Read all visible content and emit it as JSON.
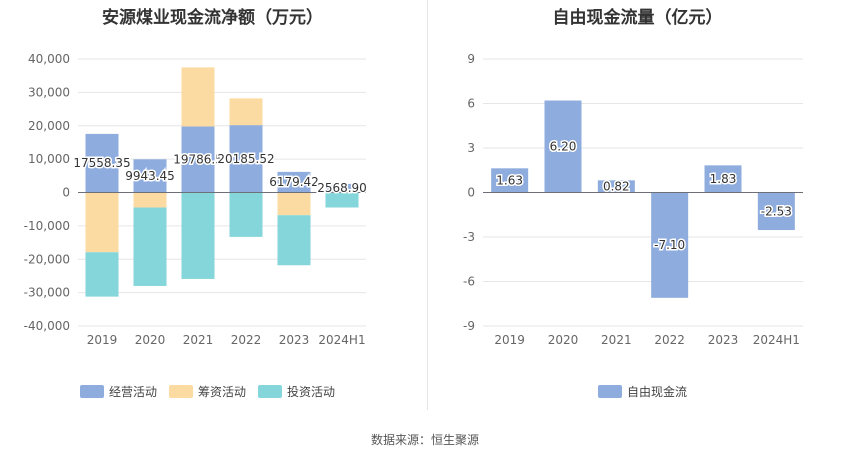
{
  "source": "数据来源：恒生聚源",
  "chart_data": [
    {
      "type": "bar",
      "stacked": true,
      "title": "安源煤业现金流净额（万元）",
      "categories": [
        "2019",
        "2020",
        "2021",
        "2022",
        "2023",
        "2024H1"
      ],
      "ylim": [
        -40000,
        40000
      ],
      "yticks": [
        40000,
        30000,
        20000,
        10000,
        0,
        -10000,
        -20000,
        -30000,
        -40000
      ],
      "ytick_labels": [
        "40,000",
        "30,000",
        "20,000",
        "10,000",
        "0",
        "-10,000",
        "-20,000",
        "-30,000",
        "-40,000"
      ],
      "grid": true,
      "legend_position": "bottom",
      "series": [
        {
          "name": "经营活动",
          "color": "#8eacdd",
          "values": [
            17558.35,
            9943.45,
            19786.5,
            20185.52,
            6179.42,
            2568.9
          ],
          "labels": [
            "17558.35",
            "9943.45",
            "19786.5",
            "20185.52",
            "6179.42",
            "2568.90"
          ]
        },
        {
          "name": "筹资活动",
          "color": "#fcdba3",
          "values": [
            -17900,
            -4500,
            17700,
            8000,
            -6800,
            0
          ]
        },
        {
          "name": "投资活动",
          "color": "#85d6db",
          "values": [
            -13300,
            -23500,
            -25900,
            -13300,
            -15000,
            -4500
          ]
        }
      ]
    },
    {
      "type": "bar",
      "title": "自由现金流量（亿元）",
      "categories": [
        "2019",
        "2020",
        "2021",
        "2022",
        "2023",
        "2024H1"
      ],
      "ylim": [
        -9,
        9
      ],
      "yticks": [
        9,
        6,
        3,
        0,
        -3,
        -6,
        -9
      ],
      "ytick_labels": [
        "9",
        "6",
        "3",
        "0",
        "-3",
        "-6",
        "-9"
      ],
      "grid": true,
      "legend_position": "bottom",
      "series": [
        {
          "name": "自由现金流",
          "color": "#8eacdd",
          "values": [
            1.63,
            6.2,
            0.82,
            -7.1,
            1.83,
            -2.53
          ],
          "labels": [
            "1.63",
            "6.20",
            "0.82",
            "-7.10",
            "1.83",
            "-2.53"
          ]
        }
      ]
    }
  ]
}
